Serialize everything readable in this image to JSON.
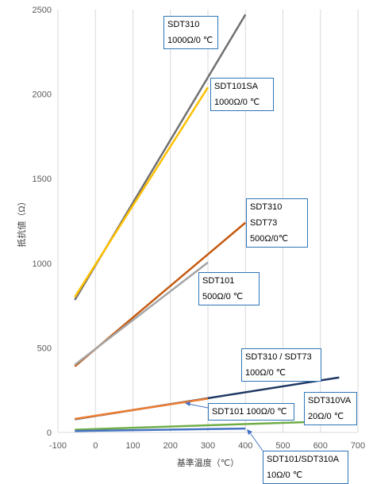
{
  "chart_data": {
    "type": "line",
    "xlabel": "基準温度（℃）",
    "ylabel": "抵抗値（Ω）",
    "xlim": [
      -100,
      700
    ],
    "ylim": [
      0,
      2500
    ],
    "x_ticks": [
      "-100",
      "0",
      "100",
      "200",
      "300",
      "400",
      "500",
      "600",
      "700"
    ],
    "y_ticks": [
      "0",
      "500",
      "1000",
      "1500",
      "2000",
      "2500"
    ],
    "grid": "vertical",
    "series": [
      {
        "key": "sdt310_1000",
        "color": "#707070",
        "points": [
          [
            -55,
            783
          ],
          [
            400,
            2470
          ]
        ]
      },
      {
        "key": "sdt101sa_1000",
        "color": "#ffc000",
        "points": [
          [
            -55,
            800
          ],
          [
            300,
            2040
          ]
        ]
      },
      {
        "key": "sdt310_500",
        "color": "#c55a11",
        "points": [
          [
            -55,
            390
          ],
          [
            400,
            1240
          ]
        ]
      },
      {
        "key": "sdt101_500",
        "color": "#a5a5a5",
        "points": [
          [
            -55,
            400
          ],
          [
            300,
            1005
          ]
        ]
      },
      {
        "key": "sdt310_100",
        "color": "#203864",
        "points": [
          [
            -55,
            78
          ],
          [
            650,
            325
          ]
        ]
      },
      {
        "key": "sdt101_100",
        "color": "#ed7d31",
        "points": [
          [
            -55,
            80
          ],
          [
            300,
            200
          ]
        ]
      },
      {
        "key": "sdt310va_20",
        "color": "#70ad47",
        "points": [
          [
            -55,
            16
          ],
          [
            600,
            64
          ]
        ]
      },
      {
        "key": "sdt101_10",
        "color": "#4472c4",
        "points": [
          [
            -55,
            8
          ],
          [
            400,
            23
          ]
        ]
      }
    ],
    "annotations": [
      {
        "lines": [
          "SDT310",
          "1000Ω/0 ℃"
        ]
      },
      {
        "lines": [
          "SDT101SA",
          "1000Ω/0 ℃"
        ]
      },
      {
        "lines": [
          "SDT310",
          "SDT73",
          "500Ω/0℃"
        ]
      },
      {
        "lines": [
          "SDT101",
          "500Ω/0 ℃"
        ]
      },
      {
        "lines": [
          "SDT310 / SDT73",
          "100Ω/0 ℃"
        ]
      },
      {
        "lines": [
          "SDT101 100Ω/0 ℃"
        ]
      },
      {
        "lines": [
          "SDT310VA",
          "20Ω/0 ℃"
        ]
      },
      {
        "lines": [
          "SDT101/SDT310A",
          "10Ω/0 ℃"
        ]
      }
    ]
  }
}
